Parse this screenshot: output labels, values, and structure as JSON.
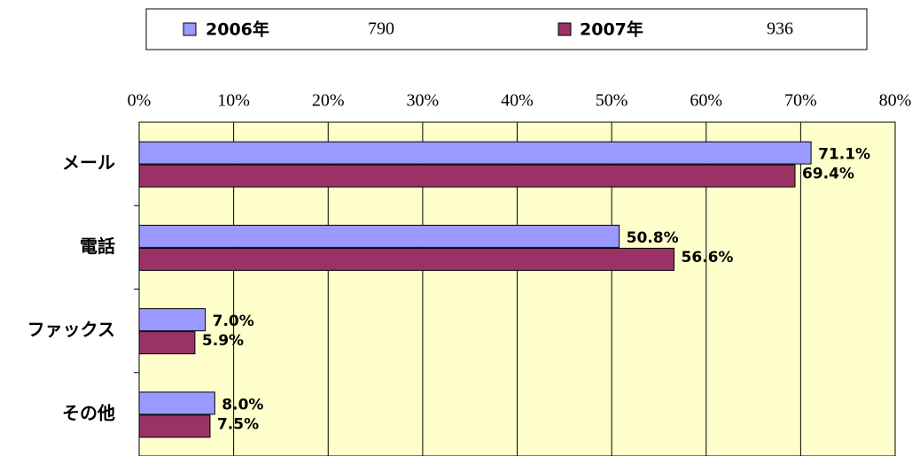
{
  "chart_data": {
    "type": "hbar",
    "categories": [
      "メール",
      "電話",
      "ファックス",
      "その他"
    ],
    "series": [
      {
        "name": "2006年",
        "n": 790,
        "color": "#9999ff",
        "values": [
          71.1,
          50.8,
          7.0,
          8.0
        ],
        "value_labels": [
          "71.1%",
          "50.8%",
          "7.0%",
          "8.0%"
        ]
      },
      {
        "name": "2007年",
        "n": 936,
        "color": "#993366",
        "values": [
          69.4,
          56.6,
          5.9,
          7.5
        ],
        "value_labels": [
          "69.4%",
          "56.6%",
          "5.9%",
          "7.5%"
        ]
      }
    ],
    "xlim": [
      0,
      80
    ],
    "xticks": [
      {
        "value": 0,
        "label": "0%"
      },
      {
        "value": 10,
        "label": "10%"
      },
      {
        "value": 20,
        "label": "20%"
      },
      {
        "value": 30,
        "label": "30%"
      },
      {
        "value": 40,
        "label": "40%"
      },
      {
        "value": 50,
        "label": "50%"
      },
      {
        "value": 60,
        "label": "60%"
      },
      {
        "value": 70,
        "label": "70%"
      },
      {
        "value": 80,
        "label": "80%"
      }
    ],
    "grid": true,
    "legend": "top"
  }
}
